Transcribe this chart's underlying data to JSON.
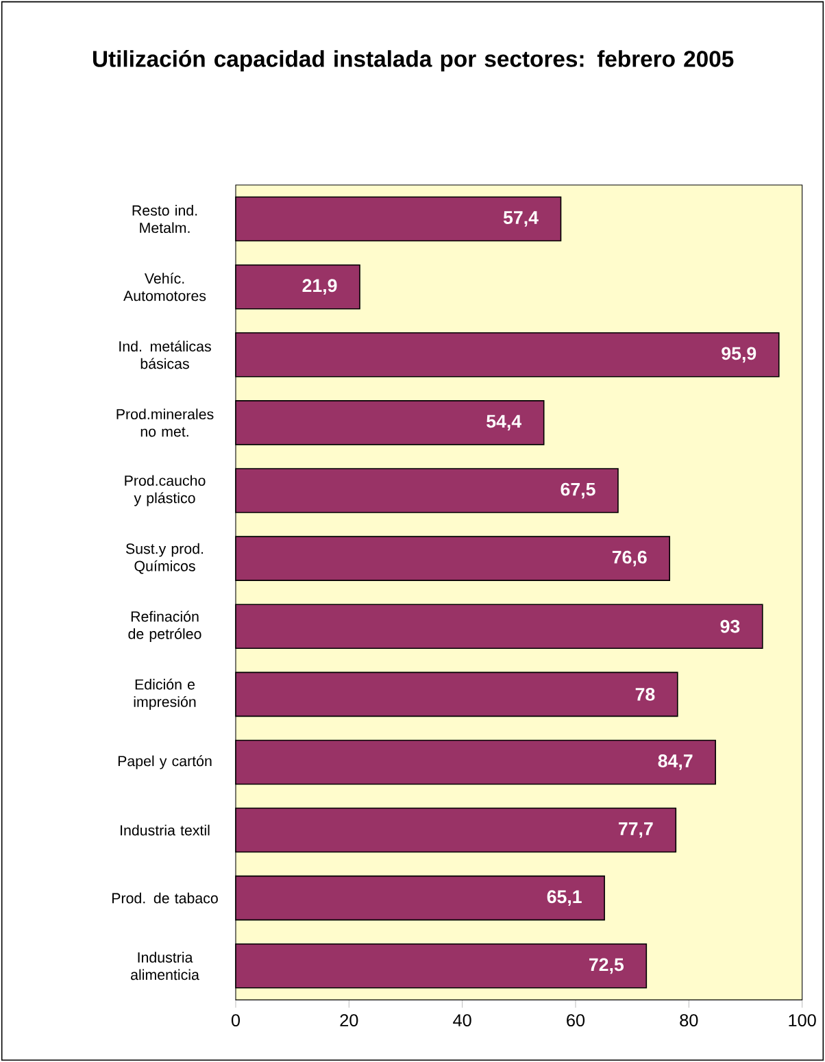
{
  "chart_data": {
    "type": "bar",
    "orientation": "horizontal",
    "title": "Utilización capacidad instalada por sectores: febrero 2005",
    "categories": [
      "Resto ind. Metalm.",
      "Vehíc. Automotores",
      "Ind. metálicas básicas",
      "Prod.minerales no met.",
      "Prod.caucho y plástico",
      "Sust.y prod. Químicos",
      "Refinación de petróleo",
      "Edición e impresión",
      "Papel y cartón",
      "Industria textil",
      "Prod. de tabaco",
      "Industria alimenticia"
    ],
    "values": [
      57.4,
      21.9,
      95.9,
      54.4,
      67.5,
      76.6,
      93,
      78,
      84.7,
      77.7,
      65.1,
      72.5
    ],
    "value_labels": [
      "57,4",
      "21,9",
      "95,9",
      "54,4",
      "67,5",
      "76,6",
      "93",
      "78",
      "84,7",
      "77,7",
      "65,1",
      "72,5"
    ],
    "color": "#993366",
    "xlim": [
      0,
      100
    ],
    "xticks": [
      0,
      20,
      40,
      60,
      80,
      100
    ],
    "grid": false
  }
}
